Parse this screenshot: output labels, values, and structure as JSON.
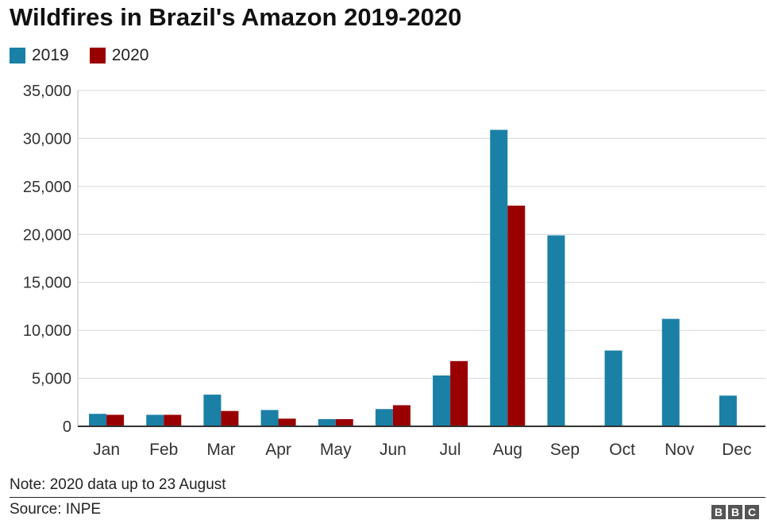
{
  "chart_data": {
    "type": "bar",
    "title": "Wildfires in Brazil's Amazon 2019-2020",
    "categories": [
      "Jan",
      "Feb",
      "Mar",
      "Apr",
      "May",
      "Jun",
      "Jul",
      "Aug",
      "Sep",
      "Oct",
      "Nov",
      "Dec"
    ],
    "series": [
      {
        "name": "2019",
        "color": "#1a80a6",
        "values": [
          1300,
          1200,
          3300,
          1700,
          750,
          1800,
          5300,
          30900,
          19900,
          7900,
          11200,
          3200
        ]
      },
      {
        "name": "2020",
        "color": "#990000",
        "values": [
          1200,
          1200,
          1600,
          800,
          750,
          2200,
          6800,
          23000,
          null,
          null,
          null,
          null
        ]
      }
    ],
    "ylim": [
      0,
      35000
    ],
    "yticks": [
      "0",
      "5,000",
      "10,000",
      "15,000",
      "20,000",
      "25,000",
      "30,000",
      "35,000"
    ],
    "grid": true,
    "legend": "top-left",
    "xlabel": "",
    "ylabel": ""
  },
  "footer": {
    "note": "Note: 2020 data up to 23 August",
    "source": "Source: INPE",
    "logo_letters": [
      "B",
      "B",
      "C"
    ]
  }
}
